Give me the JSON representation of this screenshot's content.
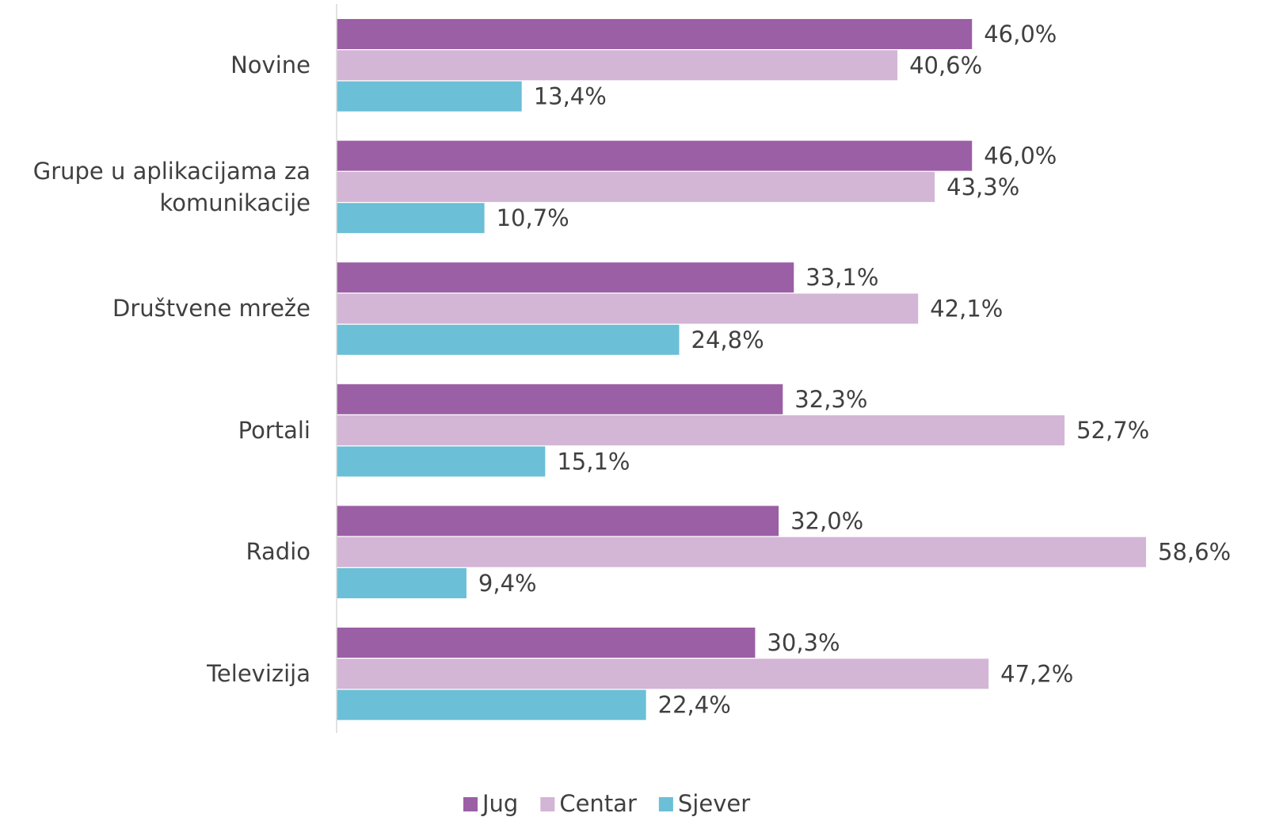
{
  "chart_data": {
    "type": "bar",
    "orientation": "horizontal",
    "categories": [
      "Novine",
      "Grupe u aplikacijama za\nkomunikacije",
      "Društvene mreže",
      "Portali",
      "Radio",
      "Televizija"
    ],
    "series": [
      {
        "name": "Jug",
        "color": "#9b5fa5",
        "values": [
          46.0,
          46.0,
          33.1,
          32.3,
          32.0,
          30.3
        ],
        "value_labels": [
          "46,0%",
          "46,0%",
          "33,1%",
          "32,3%",
          "32,0%",
          "30,3%"
        ]
      },
      {
        "name": "Centar",
        "color": "#d3b5d6",
        "values": [
          40.6,
          43.3,
          42.1,
          52.7,
          58.6,
          47.2
        ],
        "value_labels": [
          "40,6%",
          "43,3%",
          "42,1%",
          "52,7%",
          "58,6%",
          "47,2%"
        ]
      },
      {
        "name": "Sjever",
        "color": "#6bbfd6",
        "values": [
          13.4,
          10.7,
          24.8,
          15.1,
          9.4,
          22.4
        ],
        "value_labels": [
          "13,4%",
          "10,7%",
          "24,8%",
          "15,1%",
          "9,4%",
          "22,4%"
        ]
      }
    ],
    "xlim": [
      0,
      65
    ],
    "legend": "bottom"
  }
}
